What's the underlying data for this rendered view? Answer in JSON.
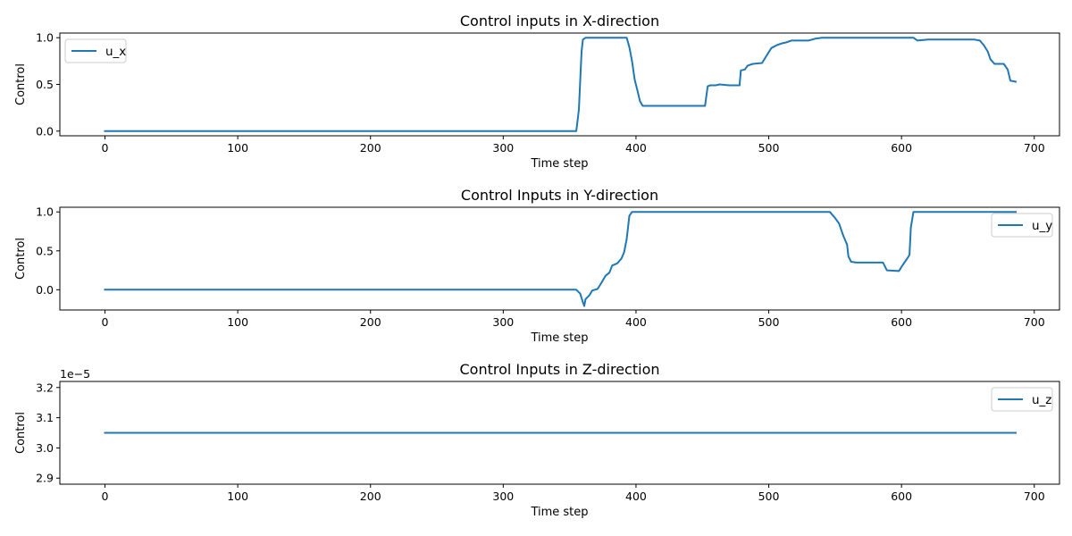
{
  "chart_data": [
    {
      "type": "line",
      "title": "Control inputs in X-direction",
      "xlabel": "Time step",
      "ylabel": "Control",
      "xlim": [
        -34,
        719
      ],
      "ylim": [
        -0.05,
        1.05
      ],
      "xticks": [
        0,
        100,
        200,
        300,
        400,
        500,
        600,
        700
      ],
      "yticks": [
        0.0,
        0.5,
        1.0
      ],
      "xtick_labels": [
        "0",
        "100",
        "200",
        "300",
        "400",
        "500",
        "600",
        "700"
      ],
      "ytick_labels": [
        "0.0",
        "0.5",
        "1.0"
      ],
      "offset_text": "",
      "grid": false,
      "legend_position": "upper left",
      "colors": {
        "line": "#1f77b4"
      },
      "series": [
        {
          "name": "u_x",
          "points": [
            [
              0,
              0.0
            ],
            [
              355,
              0.0
            ],
            [
              357,
              0.23
            ],
            [
              359,
              0.85
            ],
            [
              360,
              0.98
            ],
            [
              362,
              1.0
            ],
            [
              393,
              1.0
            ],
            [
              395,
              0.9
            ],
            [
              397,
              0.75
            ],
            [
              399,
              0.55
            ],
            [
              401,
              0.44
            ],
            [
              403,
              0.32
            ],
            [
              405,
              0.27
            ],
            [
              410,
              0.27
            ],
            [
              430,
              0.27
            ],
            [
              452,
              0.27
            ],
            [
              454,
              0.48
            ],
            [
              456,
              0.49
            ],
            [
              460,
              0.49
            ],
            [
              463,
              0.5
            ],
            [
              470,
              0.49
            ],
            [
              478,
              0.49
            ],
            [
              479,
              0.65
            ],
            [
              482,
              0.66
            ],
            [
              484,
              0.7
            ],
            [
              488,
              0.72
            ],
            [
              495,
              0.73
            ],
            [
              498,
              0.8
            ],
            [
              502,
              0.89
            ],
            [
              506,
              0.92
            ],
            [
              510,
              0.94
            ],
            [
              513,
              0.95
            ],
            [
              517,
              0.97
            ],
            [
              530,
              0.97
            ],
            [
              535,
              0.99
            ],
            [
              540,
              1.0
            ],
            [
              606,
              1.0
            ],
            [
              609,
              1.0
            ],
            [
              612,
              0.97
            ],
            [
              620,
              0.98
            ],
            [
              655,
              0.98
            ],
            [
              659,
              0.97
            ],
            [
              662,
              0.92
            ],
            [
              665,
              0.85
            ],
            [
              667,
              0.77
            ],
            [
              670,
              0.72
            ],
            [
              677,
              0.72
            ],
            [
              680,
              0.66
            ],
            [
              682,
              0.54
            ],
            [
              686,
              0.53
            ]
          ]
        }
      ]
    },
    {
      "type": "line",
      "title": "Control Inputs in Y-direction",
      "xlabel": "Time step",
      "ylabel": "Control",
      "xlim": [
        -34,
        719
      ],
      "ylim": [
        -0.26,
        1.06
      ],
      "xticks": [
        0,
        100,
        200,
        300,
        400,
        500,
        600,
        700
      ],
      "yticks": [
        0.0,
        0.5,
        1.0
      ],
      "xtick_labels": [
        "0",
        "100",
        "200",
        "300",
        "400",
        "500",
        "600",
        "700"
      ],
      "ytick_labels": [
        "0.0",
        "0.5",
        "1.0"
      ],
      "offset_text": "",
      "grid": false,
      "legend_position": "upper right",
      "colors": {
        "line": "#1f77b4"
      },
      "series": [
        {
          "name": "u_y",
          "points": [
            [
              0,
              0.0
            ],
            [
              355,
              0.0
            ],
            [
              358,
              -0.05
            ],
            [
              360,
              -0.16
            ],
            [
              361,
              -0.21
            ],
            [
              362,
              -0.12
            ],
            [
              365,
              -0.07
            ],
            [
              367,
              -0.01
            ],
            [
              371,
              0.01
            ],
            [
              374,
              0.09
            ],
            [
              377,
              0.18
            ],
            [
              380,
              0.22
            ],
            [
              382,
              0.31
            ],
            [
              386,
              0.34
            ],
            [
              389,
              0.4
            ],
            [
              391,
              0.48
            ],
            [
              393,
              0.65
            ],
            [
              395,
              0.95
            ],
            [
              397,
              1.0
            ],
            [
              410,
              1.0
            ],
            [
              540,
              1.0
            ],
            [
              546,
              1.0
            ],
            [
              550,
              0.92
            ],
            [
              553,
              0.85
            ],
            [
              556,
              0.7
            ],
            [
              559,
              0.58
            ],
            [
              560,
              0.43
            ],
            [
              562,
              0.36
            ],
            [
              566,
              0.35
            ],
            [
              586,
              0.35
            ],
            [
              589,
              0.25
            ],
            [
              598,
              0.24
            ],
            [
              601,
              0.32
            ],
            [
              605,
              0.42
            ],
            [
              606,
              0.45
            ],
            [
              607,
              0.8
            ],
            [
              609,
              1.0
            ],
            [
              686,
              1.0
            ]
          ]
        }
      ]
    },
    {
      "type": "line",
      "title": "Control Inputs in Z-direction",
      "xlabel": "Time step",
      "ylabel": "Control",
      "xlim": [
        -34,
        719
      ],
      "ylim": [
        2.88,
        3.22
      ],
      "xticks": [
        0,
        100,
        200,
        300,
        400,
        500,
        600,
        700
      ],
      "yticks": [
        2.9,
        3.0,
        3.1,
        3.2
      ],
      "xtick_labels": [
        "0",
        "100",
        "200",
        "300",
        "400",
        "500",
        "600",
        "700"
      ],
      "ytick_labels": [
        "2.9",
        "3.0",
        "3.1",
        "3.2"
      ],
      "offset_text": "1e−5",
      "grid": false,
      "legend_position": "upper right",
      "colors": {
        "line": "#1f77b4"
      },
      "series": [
        {
          "name": "u_z",
          "points": [
            [
              0,
              3.05
            ],
            [
              686,
              3.05
            ]
          ]
        }
      ]
    }
  ]
}
